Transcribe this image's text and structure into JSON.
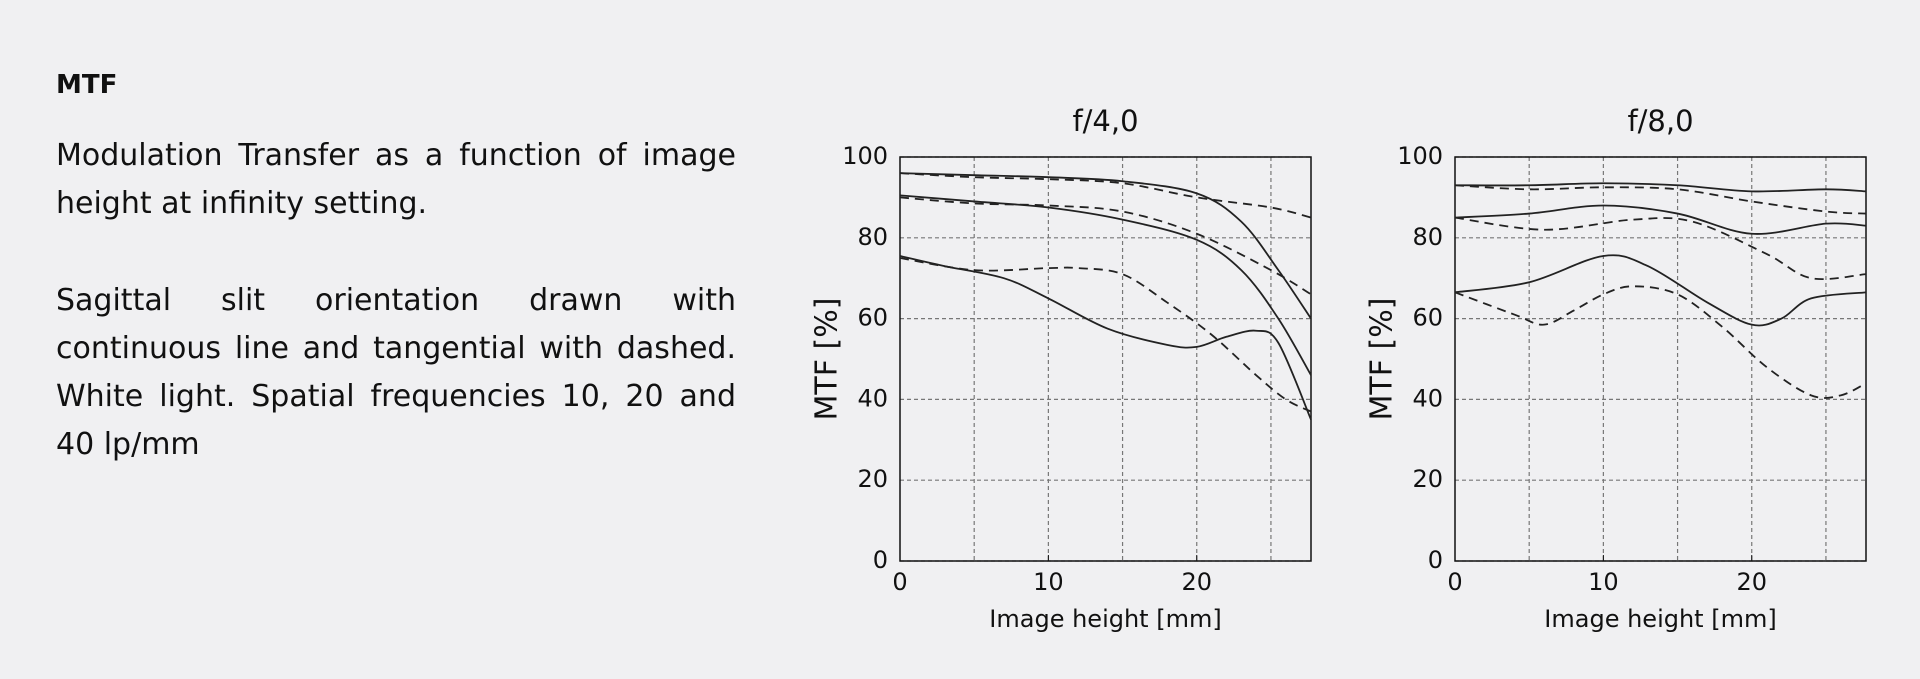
{
  "text": {
    "heading": "MTF",
    "paragraphs": [
      "Modulation Transfer as a function of image height at infinity setting.",
      "Sagittal slit orientation drawn with continuous line and tangential with dashed. White light. Spatial frequencies 10, 20 and 40 lp/mm"
    ]
  },
  "chart_data": [
    {
      "type": "line",
      "title": "f/4,0",
      "x_label": "Image height [mm]",
      "y_label": "MTF [%]",
      "xlim": [
        0,
        27.7
      ],
      "ylim": [
        0,
        100
      ],
      "xticks": [
        0,
        10,
        20
      ],
      "yticks": [
        0,
        20,
        40,
        60,
        80,
        100
      ],
      "x_grid": [
        5,
        10,
        15,
        20,
        25
      ],
      "grid": true,
      "series": [
        {
          "color": "#222222",
          "dashed": false,
          "x": [
            0,
            5,
            10,
            15,
            20,
            23,
            25.5,
            27.7
          ],
          "values": [
            96,
            95.5,
            95,
            94,
            91,
            84,
            72,
            60
          ]
        },
        {
          "color": "#222222",
          "dashed": true,
          "x": [
            0,
            5,
            10,
            15,
            20,
            25,
            27.7
          ],
          "values": [
            96,
            95,
            94.5,
            93.5,
            90,
            87.5,
            85
          ]
        },
        {
          "color": "#222222",
          "dashed": false,
          "x": [
            0,
            5,
            10,
            15,
            20,
            23,
            25.5,
            27.7
          ],
          "values": [
            90.5,
            89,
            87.5,
            84.5,
            79.5,
            72,
            60,
            46
          ]
        },
        {
          "color": "#222222",
          "dashed": true,
          "x": [
            0,
            5,
            10,
            15,
            20,
            25,
            27.7
          ],
          "values": [
            90,
            88.5,
            88,
            86.5,
            81,
            72,
            66
          ]
        },
        {
          "color": "#222222",
          "dashed": false,
          "x": [
            0,
            3,
            7,
            10,
            14,
            18,
            20,
            22,
            24,
            25.5,
            27.7
          ],
          "values": [
            75.5,
            73,
            70,
            65,
            57.5,
            53.5,
            53,
            55.5,
            57,
            54,
            35
          ]
        },
        {
          "color": "#222222",
          "dashed": true,
          "x": [
            0,
            5,
            10,
            12,
            15,
            18,
            21,
            24,
            26,
            27.7
          ],
          "values": [
            75,
            72,
            72.5,
            72.5,
            71,
            64,
            56,
            46,
            40,
            37
          ]
        }
      ]
    },
    {
      "type": "line",
      "title": "f/8,0",
      "x_label": "Image height [mm]",
      "y_label": "MTF [%]",
      "xlim": [
        0,
        27.7
      ],
      "ylim": [
        0,
        100
      ],
      "xticks": [
        0,
        10,
        20
      ],
      "yticks": [
        0,
        20,
        40,
        60,
        80,
        100
      ],
      "x_grid": [
        5,
        10,
        15,
        20,
        25
      ],
      "grid": true,
      "series": [
        {
          "color": "#222222",
          "dashed": false,
          "x": [
            0,
            5,
            10,
            15,
            20,
            25,
            27.7
          ],
          "values": [
            93,
            93,
            93.5,
            93,
            91.5,
            92,
            91.5
          ]
        },
        {
          "color": "#222222",
          "dashed": true,
          "x": [
            0,
            5,
            10,
            15,
            20,
            25,
            27.7
          ],
          "values": [
            93,
            92,
            92.5,
            92,
            89,
            86.5,
            86
          ]
        },
        {
          "color": "#222222",
          "dashed": false,
          "x": [
            0,
            5,
            10,
            15,
            20,
            25,
            27.7
          ],
          "values": [
            85,
            86,
            88,
            86,
            81,
            83.5,
            83
          ]
        },
        {
          "color": "#222222",
          "dashed": true,
          "x": [
            0,
            6,
            12,
            16,
            21,
            24,
            27.7
          ],
          "values": [
            85,
            82,
            84.5,
            84,
            76,
            70,
            71
          ]
        },
        {
          "color": "#222222",
          "dashed": false,
          "x": [
            0,
            5,
            10,
            13,
            17,
            20,
            22,
            24,
            27.7
          ],
          "values": [
            66.5,
            69,
            75.5,
            73,
            64,
            58.5,
            60,
            65,
            66.5
          ]
        },
        {
          "color": "#222222",
          "dashed": true,
          "x": [
            0,
            4,
            6,
            8,
            10,
            12,
            15,
            18,
            21,
            24,
            26,
            27.7
          ],
          "values": [
            66.5,
            61,
            58.5,
            62,
            66,
            68,
            66,
            58,
            48,
            41,
            41,
            44
          ]
        }
      ]
    }
  ]
}
